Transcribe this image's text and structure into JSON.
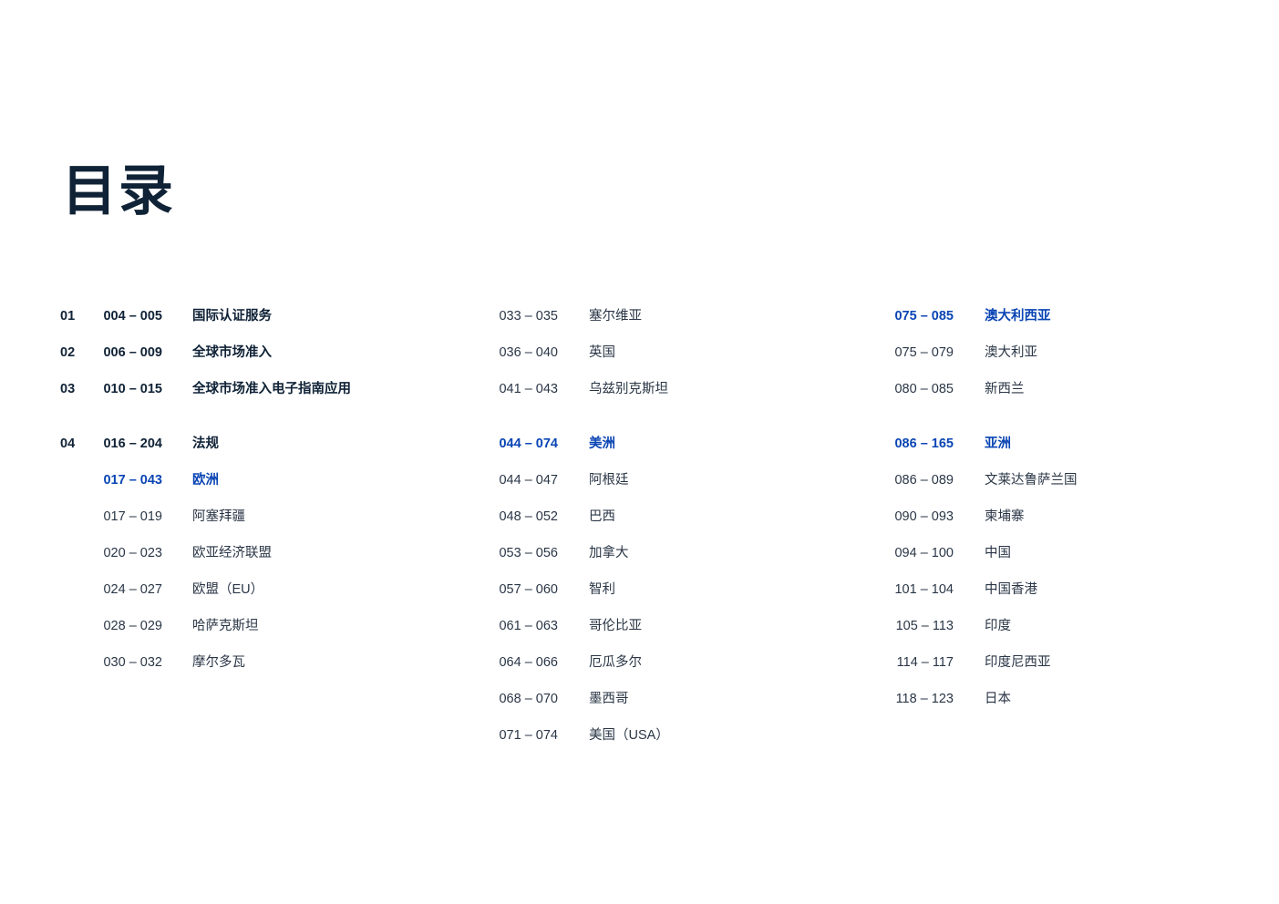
{
  "title": "目录",
  "colors": {
    "text": "#0f2236",
    "accent": "#0a45b4",
    "regular": "#2a3646"
  },
  "columns": [
    {
      "sections": [
        [
          {
            "num": "01",
            "range": "004 – 005",
            "label": "国际认证服务",
            "style": "bold"
          },
          {
            "num": "02",
            "range": "006 – 009",
            "label": "全球市场准入",
            "style": "bold"
          },
          {
            "num": "03",
            "range": "010 – 015",
            "label": "全球市场准入电子指南应用",
            "style": "bold"
          }
        ],
        [
          {
            "num": "04",
            "range": "016 – 204",
            "label": "法规",
            "style": "bold"
          },
          {
            "range": "017 – 043",
            "label": "欧洲",
            "style": "accent"
          },
          {
            "range": "017 – 019",
            "label": "阿塞拜疆",
            "style": "regular"
          },
          {
            "range": "020 – 023",
            "label": "欧亚经济联盟",
            "style": "regular"
          },
          {
            "range": "024 – 027",
            "label": "欧盟（EU）",
            "style": "regular"
          },
          {
            "range": "028 – 029",
            "label": "哈萨克斯坦",
            "style": "regular"
          },
          {
            "range": "030 – 032",
            "label": "摩尔多瓦",
            "style": "regular"
          }
        ]
      ]
    },
    {
      "sections": [
        [
          {
            "range": "033 – 035",
            "label": "塞尔维亚",
            "style": "regular"
          },
          {
            "range": "036 – 040",
            "label": "英国",
            "style": "regular"
          },
          {
            "range": "041 – 043",
            "label": "乌兹别克斯坦",
            "style": "regular"
          }
        ],
        [
          {
            "range": "044 – 074",
            "label": "美洲",
            "style": "accent"
          },
          {
            "range": "044 – 047",
            "label": "阿根廷",
            "style": "regular"
          },
          {
            "range": "048 – 052",
            "label": "巴西",
            "style": "regular"
          },
          {
            "range": "053 – 056",
            "label": "加拿大",
            "style": "regular"
          },
          {
            "range": "057 – 060",
            "label": "智利",
            "style": "regular"
          },
          {
            "range": "061 – 063",
            "label": "哥伦比亚",
            "style": "regular"
          },
          {
            "range": "064 – 066",
            "label": "厄瓜多尔",
            "style": "regular"
          },
          {
            "range": "068 – 070",
            "label": "墨西哥",
            "style": "regular"
          },
          {
            "range": "071 – 074",
            "label": "美国（USA）",
            "style": "regular"
          }
        ]
      ]
    },
    {
      "sections": [
        [
          {
            "range": "075 – 085",
            "label": "澳大利西亚",
            "style": "accent"
          },
          {
            "range": "075 – 079",
            "label": "澳大利亚",
            "style": "regular"
          },
          {
            "range": "080 – 085",
            "label": "新西兰",
            "style": "regular"
          }
        ],
        [
          {
            "range": "086 – 165",
            "label": "亚洲",
            "style": "accent"
          },
          {
            "range": "086 – 089",
            "label": "文莱达鲁萨兰国",
            "style": "regular"
          },
          {
            "range": "090 – 093",
            "label": "柬埔寨",
            "style": "regular"
          },
          {
            "range": "094 – 100",
            "label": "中国",
            "style": "regular"
          },
          {
            "range": "101 – 104",
            "label": "中国香港",
            "style": "regular"
          },
          {
            "range": "105 – 113",
            "label": "印度",
            "style": "regular"
          },
          {
            "range": "114 – 117",
            "label": "印度尼西亚",
            "style": "regular"
          },
          {
            "range": "118 – 123",
            "label": "日本",
            "style": "regular"
          }
        ]
      ]
    }
  ]
}
